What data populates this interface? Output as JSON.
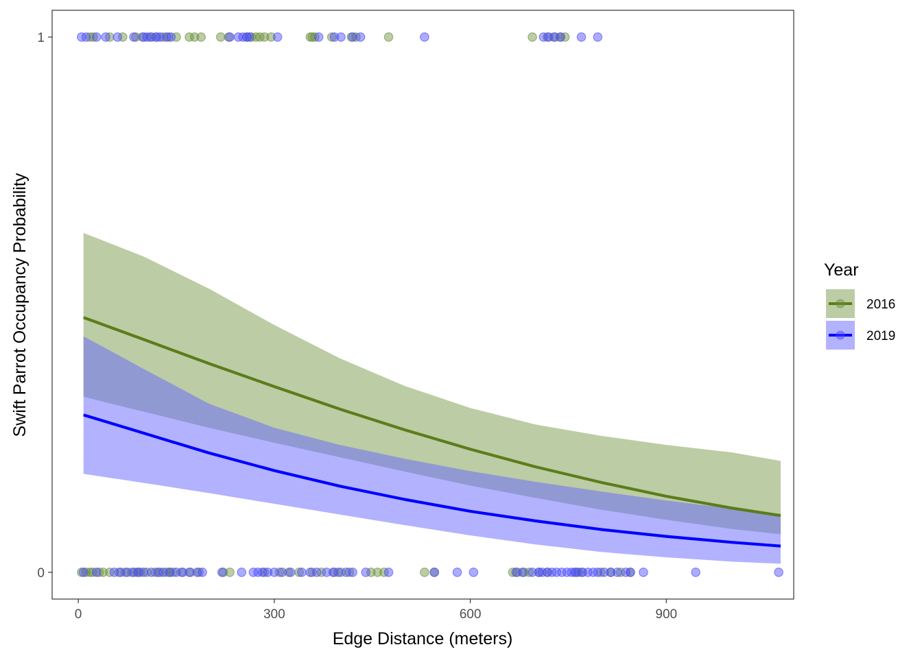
{
  "chart_data": {
    "type": "line",
    "xlabel": "Edge Distance (meters)",
    "ylabel": "Swift Parrot Occupancy Probability",
    "xlim": [
      -40,
      1095
    ],
    "ylim": [
      -0.05,
      1.05
    ],
    "x_ticks": [
      0,
      300,
      600,
      900
    ],
    "y_ticks": [
      0,
      1
    ],
    "grid": false,
    "legend": {
      "title": "Year",
      "position": "right",
      "entries": [
        "2016",
        "2019"
      ]
    },
    "series": [
      {
        "name": "2016",
        "line_color": "#5a7d1a",
        "ribbon_color": "#7a9a4a",
        "point_color": "#6b8e3a",
        "curve": {
          "x": [
            8,
            100,
            200,
            300,
            400,
            500,
            600,
            700,
            800,
            900,
            1000,
            1075
          ],
          "y": [
            0.476,
            0.435,
            0.39,
            0.347,
            0.305,
            0.266,
            0.23,
            0.197,
            0.168,
            0.142,
            0.12,
            0.106
          ]
        },
        "ci_upper": [
          0.634,
          0.59,
          0.53,
          0.462,
          0.4,
          0.348,
          0.307,
          0.276,
          0.255,
          0.238,
          0.224,
          0.208
        ],
        "ci_lower": [
          0.328,
          0.3,
          0.27,
          0.242,
          0.215,
          0.188,
          0.162,
          0.139,
          0.117,
          0.098,
          0.081,
          0.071
        ],
        "points_y1": [
          18,
          23,
          48,
          68,
          88,
          98,
          110,
          118,
          130,
          138,
          150,
          170,
          178,
          188,
          218,
          230,
          258,
          265,
          272,
          278,
          285,
          295,
          355,
          358,
          362,
          388,
          418,
          425,
          475,
          695,
          718,
          730,
          738,
          745
        ],
        "points_y0": [
          5,
          12,
          18,
          22,
          32,
          38,
          48,
          62,
          72,
          82,
          90,
          95,
          105,
          118,
          125,
          135,
          140,
          145,
          158,
          172,
          185,
          222,
          232,
          285,
          308,
          322,
          338,
          358,
          372,
          392,
          402,
          415,
          448,
          458,
          468,
          530,
          545,
          665,
          672,
          682,
          690,
          705,
          718,
          762,
          770,
          800,
          815,
          830,
          845
        ]
      },
      {
        "name": "2019",
        "line_color": "#0000ff",
        "ribbon_color": "#6666ff",
        "point_color": "#4a4aff",
        "curve": {
          "x": [
            8,
            100,
            200,
            300,
            400,
            500,
            600,
            700,
            800,
            900,
            1000,
            1075
          ],
          "y": [
            0.294,
            0.26,
            0.223,
            0.19,
            0.161,
            0.136,
            0.114,
            0.096,
            0.08,
            0.067,
            0.056,
            0.049
          ]
        },
        "ci_upper": [
          0.441,
          0.38,
          0.315,
          0.27,
          0.238,
          0.212,
          0.189,
          0.169,
          0.151,
          0.134,
          0.119,
          0.109
        ],
        "ci_lower": [
          0.184,
          0.167,
          0.148,
          0.128,
          0.108,
          0.088,
          0.069,
          0.052,
          0.038,
          0.028,
          0.02,
          0.016
        ],
        "points_y1": [
          5,
          12,
          28,
          42,
          60,
          85,
          100,
          105,
          112,
          120,
          125,
          135,
          142,
          232,
          245,
          252,
          258,
          262,
          305,
          368,
          392,
          402,
          420,
          432,
          530,
          712,
          720,
          728,
          738,
          770,
          795
        ],
        "points_y0": [
          8,
          28,
          55,
          65,
          75,
          85,
          92,
          100,
          112,
          122,
          130,
          140,
          150,
          160,
          170,
          182,
          190,
          220,
          250,
          268,
          275,
          282,
          290,
          300,
          312,
          325,
          342,
          355,
          365,
          380,
          390,
          398,
          410,
          420,
          440,
          475,
          545,
          580,
          605,
          670,
          680,
          695,
          705,
          710,
          718,
          725,
          732,
          740,
          748,
          755,
          760,
          765,
          772,
          780,
          788,
          795,
          805,
          815,
          825,
          838,
          845,
          865,
          945,
          1072
        ]
      }
    ]
  }
}
